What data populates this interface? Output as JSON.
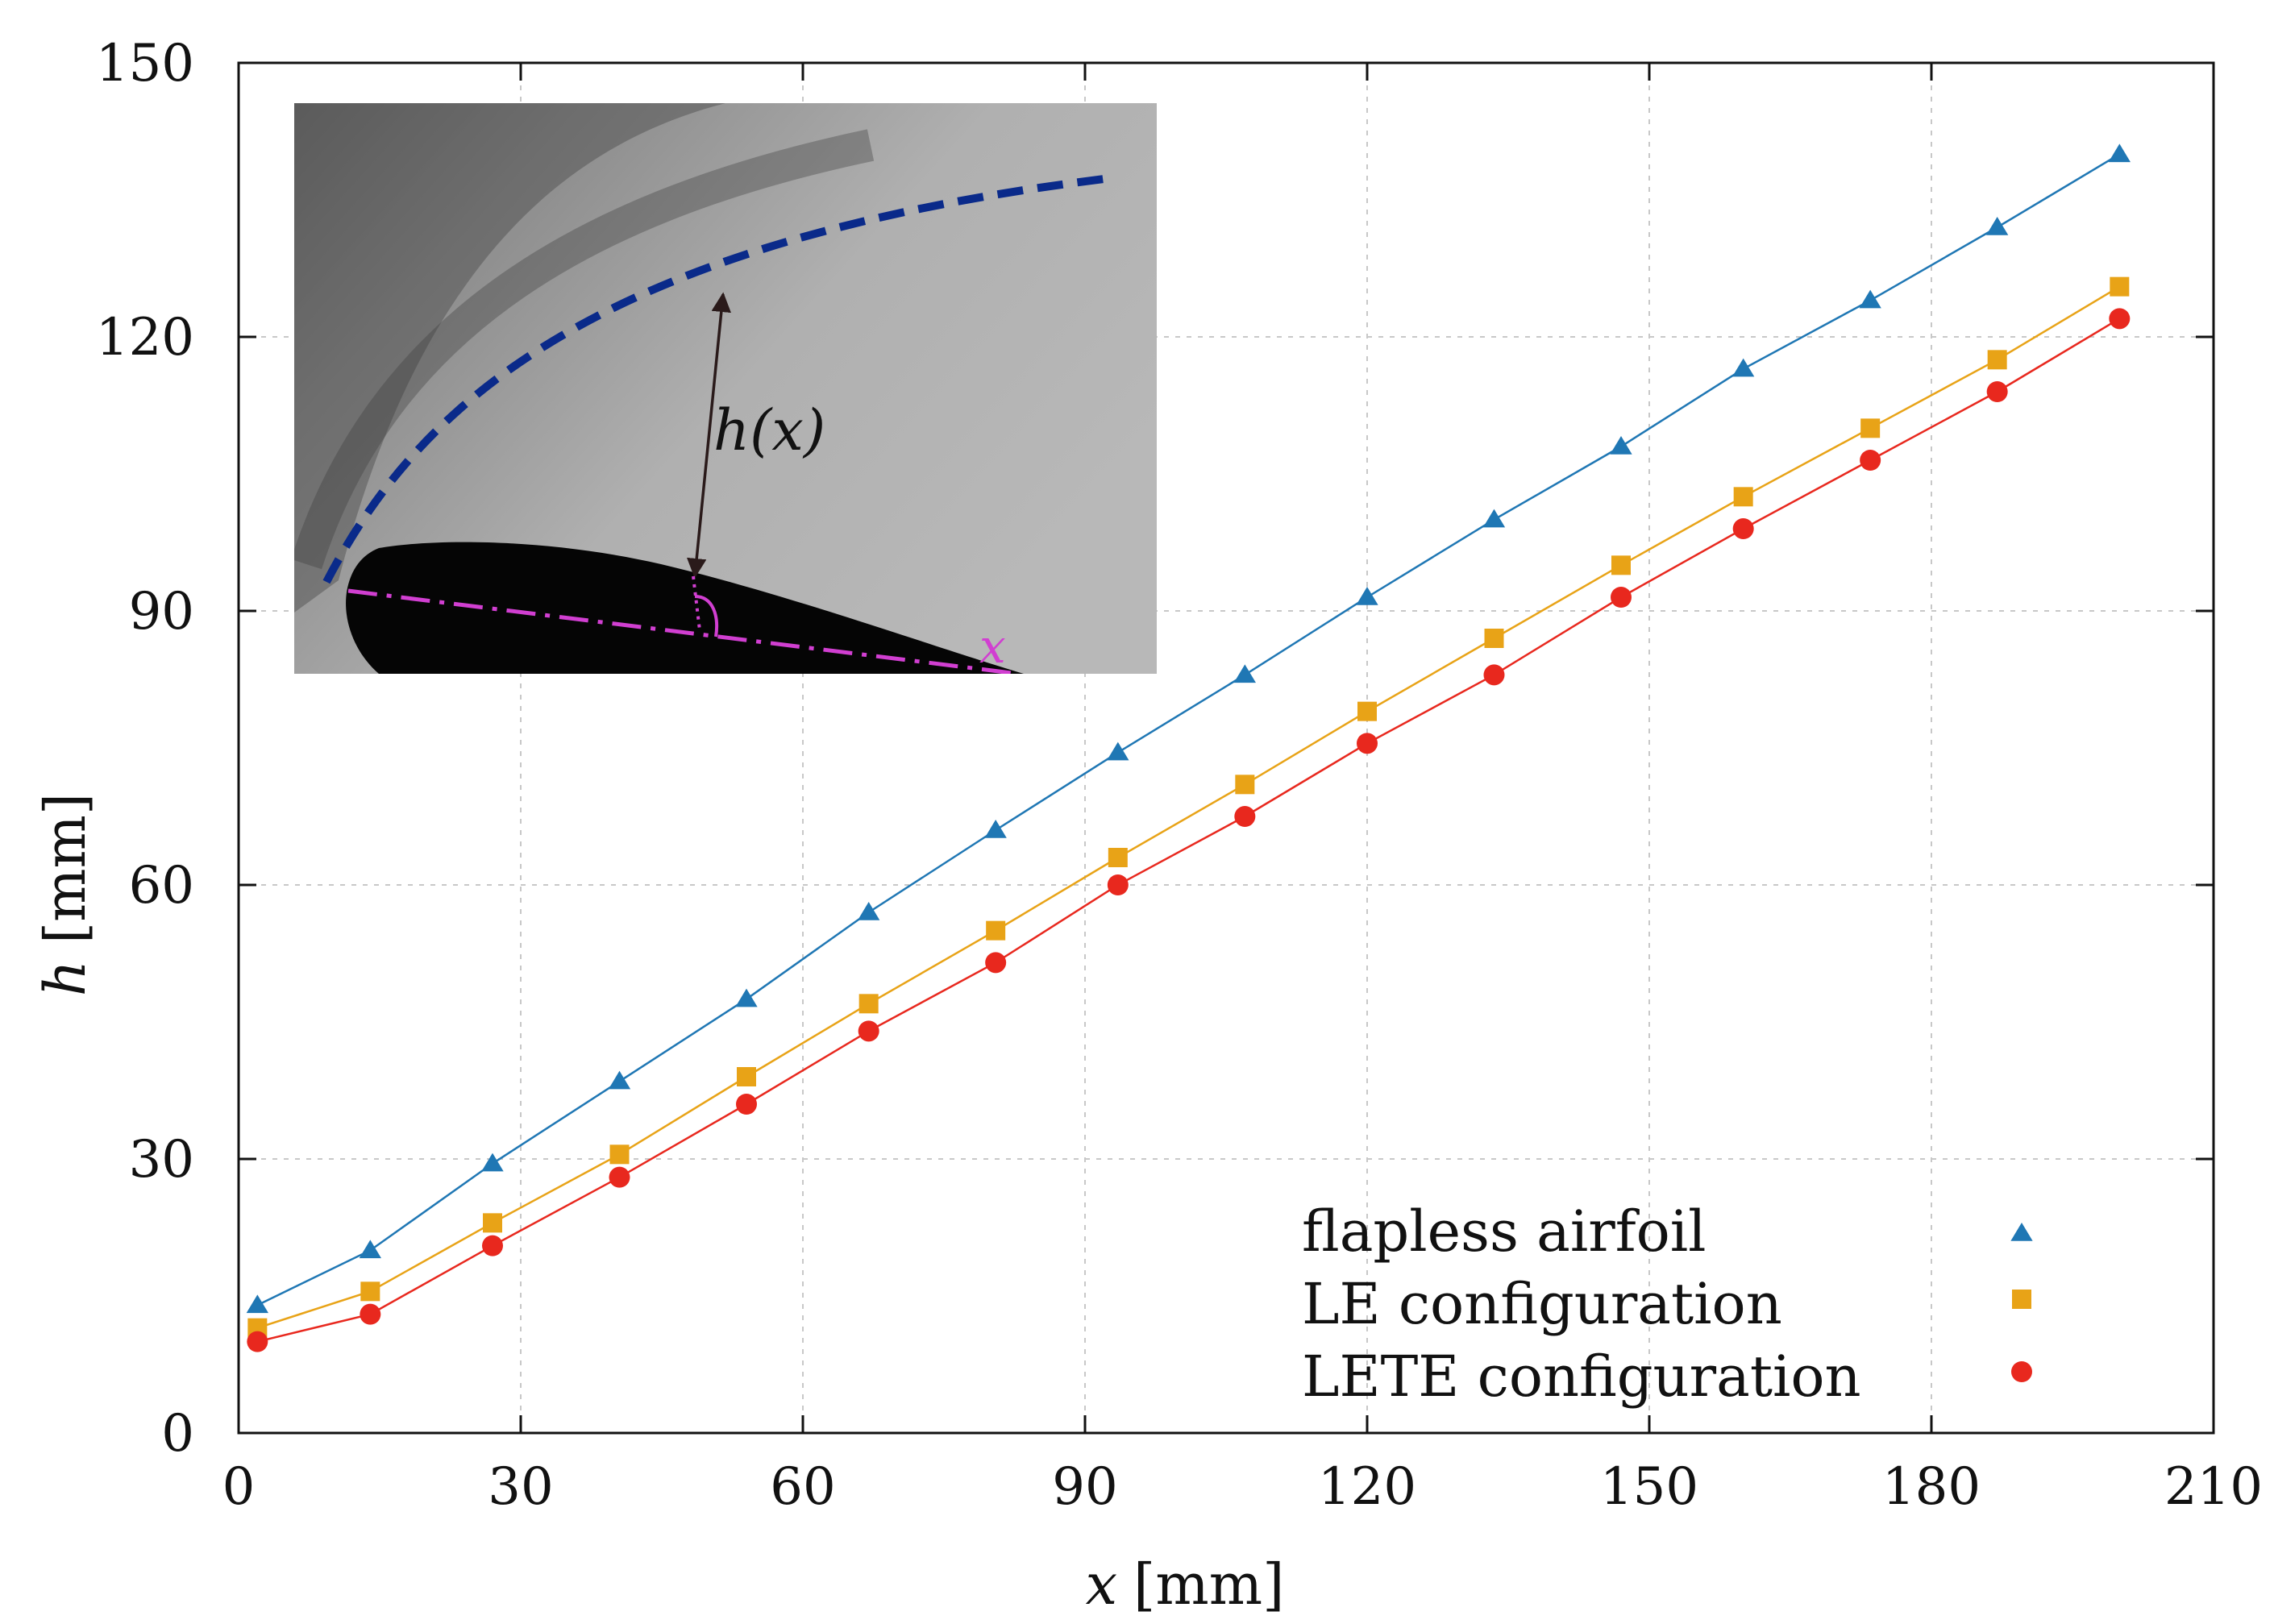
{
  "chart_data": {
    "type": "line",
    "title": "",
    "xlabel_var": "x",
    "xlabel_unit": "[mm]",
    "ylabel_var": "h",
    "ylabel_unit": "[mm]",
    "xlim": [
      0,
      210
    ],
    "ylim": [
      0,
      150
    ],
    "xticks": [
      0,
      30,
      60,
      90,
      120,
      150,
      180,
      210
    ],
    "yticks": [
      0,
      30,
      60,
      90,
      120,
      150
    ],
    "grid": true,
    "legend_position": "bottom-right",
    "x": [
      2,
      14,
      27,
      40.5,
      54,
      67,
      80.5,
      93.5,
      107,
      120,
      133.5,
      147,
      160,
      173.5,
      187,
      200
    ],
    "series": [
      {
        "name": "flapless airfoil",
        "marker": "triangle",
        "color": "#1f77b4",
        "values": [
          14,
          20,
          29.5,
          38.5,
          47.5,
          57,
          66,
          74.5,
          83,
          91.5,
          100,
          108,
          116.5,
          124,
          132,
          140
        ]
      },
      {
        "name": "LE configuration",
        "marker": "square",
        "color": "#e8a317",
        "values": [
          11.5,
          15.5,
          23,
          30.5,
          39,
          47,
          55,
          63,
          71,
          79,
          87,
          95,
          102.5,
          110,
          117.5,
          125.5
        ]
      },
      {
        "name": "LETE configuration",
        "marker": "circle",
        "color": "#e8281e",
        "values": [
          10,
          13,
          20.5,
          28,
          36,
          44,
          51.5,
          60,
          67.5,
          75.5,
          83,
          91.5,
          99,
          106.5,
          114,
          122
        ]
      }
    ],
    "inset": {
      "label_h": "h(x)",
      "label_x": "x",
      "shock_color": "#0a2a8a",
      "chord_color": "#d13fd1"
    }
  }
}
